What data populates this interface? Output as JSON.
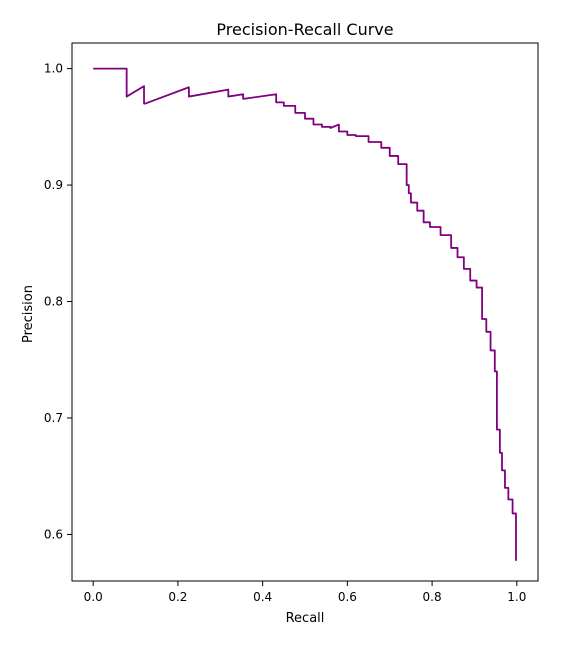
{
  "chart_data": {
    "type": "line",
    "title": "Precision-Recall Curve",
    "xlabel": "Recall",
    "ylabel": "Precision",
    "xlim": [
      -0.05,
      1.05
    ],
    "ylim": [
      0.56,
      1.022
    ],
    "grid": false,
    "legend": "none",
    "line_color": "#800080",
    "xticks": [
      0.0,
      0.2,
      0.4,
      0.6,
      0.8,
      1.0
    ],
    "yticks": [
      0.6,
      0.7,
      0.8,
      0.9,
      1.0
    ],
    "xtick_labels": [
      "0.0",
      "0.2",
      "0.4",
      "0.6",
      "0.8",
      "1.0"
    ],
    "ytick_labels": [
      "0.6",
      "0.7",
      "0.8",
      "0.9",
      "1.0"
    ],
    "series": [
      {
        "x": [
          0.0,
          0.079,
          0.079,
          0.12,
          0.12,
          0.123,
          0.123,
          0.226,
          0.226,
          0.319,
          0.319,
          0.354,
          0.354,
          0.432,
          0.432,
          0.45,
          0.45,
          0.477,
          0.477,
          0.5,
          0.5,
          0.52,
          0.52,
          0.54,
          0.54,
          0.56,
          0.56,
          0.58,
          0.58,
          0.6,
          0.6,
          0.62,
          0.62,
          0.65,
          0.65,
          0.68,
          0.68,
          0.7,
          0.7,
          0.72,
          0.72,
          0.74,
          0.74,
          0.745,
          0.745,
          0.75,
          0.75,
          0.765,
          0.765,
          0.78,
          0.78,
          0.795,
          0.795,
          0.82,
          0.82,
          0.845,
          0.845,
          0.86,
          0.86,
          0.875,
          0.875,
          0.89,
          0.89,
          0.905,
          0.905,
          0.918,
          0.918,
          0.928,
          0.928,
          0.938,
          0.938,
          0.948,
          0.948,
          0.953,
          0.953,
          0.96,
          0.96,
          0.965,
          0.965,
          0.972,
          0.972,
          0.98,
          0.98,
          0.99,
          0.99,
          0.998,
          0.998,
          1.0
        ],
        "y": [
          1.0,
          1.0,
          0.976,
          0.985,
          0.97,
          0.97,
          0.97,
          0.984,
          0.976,
          0.982,
          0.976,
          0.978,
          0.974,
          0.978,
          0.971,
          0.971,
          0.968,
          0.968,
          0.962,
          0.962,
          0.957,
          0.957,
          0.952,
          0.952,
          0.95,
          0.95,
          0.949,
          0.952,
          0.946,
          0.946,
          0.943,
          0.943,
          0.942,
          0.942,
          0.937,
          0.937,
          0.932,
          0.932,
          0.925,
          0.925,
          0.918,
          0.918,
          0.9,
          0.9,
          0.893,
          0.893,
          0.885,
          0.885,
          0.878,
          0.878,
          0.868,
          0.868,
          0.864,
          0.864,
          0.857,
          0.857,
          0.846,
          0.846,
          0.838,
          0.838,
          0.828,
          0.828,
          0.818,
          0.818,
          0.812,
          0.812,
          0.785,
          0.785,
          0.774,
          0.774,
          0.758,
          0.758,
          0.74,
          0.74,
          0.69,
          0.69,
          0.67,
          0.67,
          0.655,
          0.655,
          0.64,
          0.64,
          0.63,
          0.63,
          0.618,
          0.618,
          0.578,
          0.578
        ]
      }
    ]
  }
}
